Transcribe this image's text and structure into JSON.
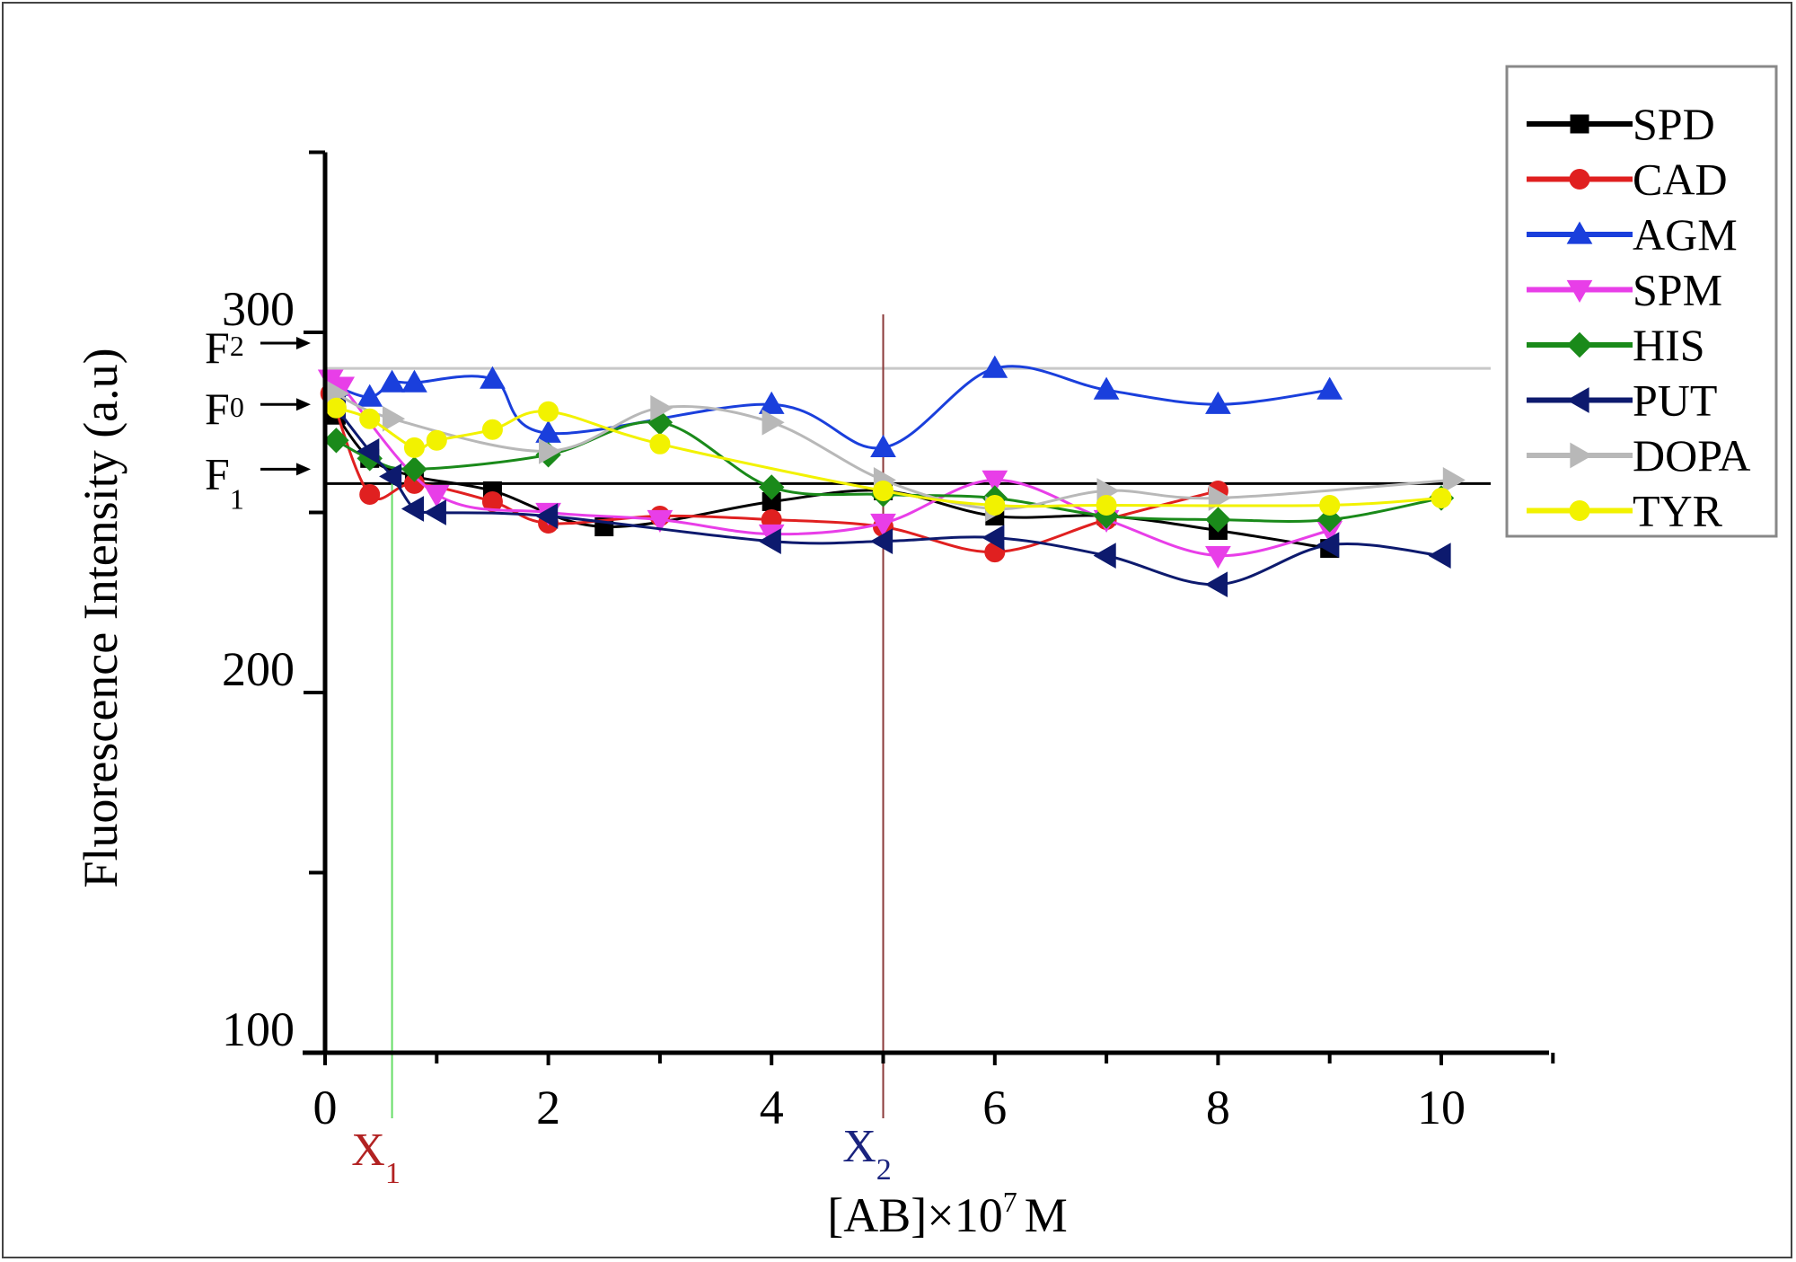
{
  "chart_data": {
    "type": "line",
    "title": "",
    "xlabel": "[AB]×10",
    "xlabel_exponent": "7",
    "xlabel_unit": "M",
    "ylabel": "Fluorescence Intensity (a.u)",
    "xlim": [
      0,
      11
    ],
    "ylim": [
      100,
      350
    ],
    "x_ticks": [
      0,
      2,
      4,
      6,
      8,
      10
    ],
    "x_minor_ticks": [
      1,
      3,
      5,
      7,
      9,
      11
    ],
    "y_ticks": [
      100,
      200,
      300
    ],
    "y_minor_ticks": [
      150,
      250,
      350
    ],
    "grid": false,
    "legend_position": "top-right",
    "reference_lines": {
      "horizontal": [
        {
          "id": "F2",
          "value": 290,
          "color": "#c8c8c8"
        },
        {
          "id": "F1",
          "value": 258,
          "color": "#000000"
        }
      ],
      "vertical": [
        {
          "id": "X1",
          "value": 0.6,
          "color": "#66dd66"
        },
        {
          "id": "X2",
          "value": 5.0,
          "color": "#8b3a3a"
        }
      ]
    },
    "annotations": {
      "F2": {
        "base": "F",
        "sub": "2",
        "y": 297
      },
      "F0": {
        "base": "F",
        "sub": "0",
        "y": 280
      },
      "F1": {
        "base": "F",
        "sub": "1",
        "y": 262
      },
      "X1": {
        "base": "X",
        "sub": "1",
        "color": "#b22222"
      },
      "X2": {
        "base": "X",
        "sub": "2",
        "color": "#1a237e"
      }
    },
    "series": [
      {
        "name": "SPD",
        "color": "#000000",
        "marker": "square",
        "x": [
          0.1,
          0.4,
          0.8,
          1.5,
          2.5,
          4,
          5,
          6,
          7,
          8,
          9
        ],
        "y": [
          277,
          265,
          260,
          256,
          246,
          253,
          256,
          249,
          249,
          245,
          240
        ]
      },
      {
        "name": "CAD",
        "color": "#e02020",
        "marker": "circle",
        "x": [
          0.05,
          0.4,
          0.8,
          1.5,
          2,
          3,
          4,
          5,
          6,
          7,
          8
        ],
        "y": [
          283,
          255,
          258,
          253,
          247,
          249,
          248,
          246,
          239,
          248,
          256
        ]
      },
      {
        "name": "AGM",
        "color": "#1a3fdc",
        "marker": "triangle-up",
        "x": [
          0.1,
          0.4,
          0.6,
          0.8,
          1.5,
          2,
          4,
          5,
          6,
          7,
          8,
          9
        ],
        "y": [
          285,
          282,
          286,
          286,
          287,
          272,
          280,
          268,
          290,
          284,
          280,
          284
        ]
      },
      {
        "name": "SPM",
        "color": "#e83ee8",
        "marker": "triangle-down",
        "x": [
          0.05,
          0.15,
          1,
          2,
          3,
          4,
          5,
          6,
          7,
          8,
          9
        ],
        "y": [
          287,
          285,
          255,
          250,
          248,
          244,
          247,
          259,
          248,
          238,
          245
        ]
      },
      {
        "name": "HIS",
        "color": "#1a8a1a",
        "marker": "diamond",
        "x": [
          0.1,
          0.4,
          0.8,
          2,
          3,
          4,
          5,
          6,
          7,
          8,
          9,
          10
        ],
        "y": [
          270,
          265,
          262,
          266,
          275,
          257,
          255,
          254,
          249,
          248,
          248,
          254
        ]
      },
      {
        "name": "PUT",
        "color": "#0d1a6e",
        "marker": "triangle-left",
        "x": [
          0.1,
          0.4,
          0.6,
          0.8,
          1,
          2,
          4,
          5,
          6,
          7,
          8,
          9,
          10
        ],
        "y": [
          279,
          267,
          260,
          251,
          250,
          249,
          242,
          242,
          243,
          238,
          230,
          241,
          238
        ]
      },
      {
        "name": "DOPA",
        "color": "#b8b8b8",
        "marker": "triangle-right",
        "x": [
          0.1,
          0.6,
          2,
          3,
          4,
          5,
          6,
          7,
          8,
          10.1
        ],
        "y": [
          283,
          276,
          267,
          279,
          275,
          259,
          251,
          256,
          254,
          259
        ]
      },
      {
        "name": "TYR",
        "color": "#f2f200",
        "marker": "circle",
        "x": [
          0.1,
          0.4,
          0.8,
          1,
          1.5,
          2,
          3,
          5,
          6,
          7,
          9,
          10
        ],
        "y": [
          279,
          276,
          268,
          270,
          273,
          278,
          269,
          256,
          252,
          252,
          252,
          254
        ]
      }
    ]
  }
}
